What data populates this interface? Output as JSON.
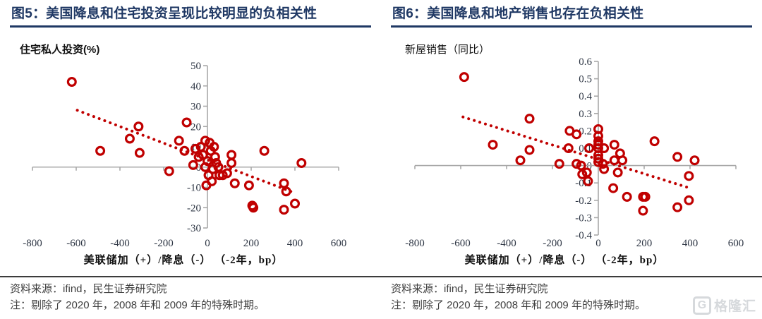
{
  "colors": {
    "marker_red": "#c00000",
    "title_navy": "#1f3864",
    "axis_gray": "#a8a8a8",
    "tick_text": "#2f3745",
    "footer_text": "#3f3f3f",
    "watermark_gray": "#d2d5d9"
  },
  "figures": [
    {
      "title": "图5：美国降息和住宅投资呈现比较明显的负相关性",
      "y_unit": "住宅私人投资(%)",
      "x_title": "美联储加（+）/降息（-） （-2年，bp）",
      "source": "资料来源：ifind，民生证券研究院",
      "note": "注：剔除了 2020 年，2008 年和 2009 年的特殊时期。"
    },
    {
      "title": "图6：美国降息和地产销售也存在负相关性",
      "y_unit": "新屋销售（同比）",
      "x_title": "美联储加（+）/降息（-） （-2年，bp）",
      "source": "资料来源：ifind，民生证券研究院",
      "note": "注：剔除了 2020 年，2008 年和 2009 年的特殊时期。"
    }
  ],
  "watermark": {
    "logo_letter": "G",
    "text": "格隆汇"
  },
  "chart_data": [
    {
      "type": "scatter",
      "title": "图5：美国降息和住宅投资呈现比较明显的负相关性",
      "xlabel": "美联储加（+）/降息（-） （-2年，bp）",
      "ylabel": "住宅私人投资(%)",
      "xlim": [
        -800,
        600
      ],
      "ylim": [
        -30,
        50
      ],
      "xticks": [
        "-800",
        "-600",
        "-400",
        "-200",
        "0",
        "200",
        "400",
        "600"
      ],
      "yticks": [
        "50",
        "40",
        "30",
        "20",
        "10",
        "0",
        "-10",
        "-20",
        "-30"
      ],
      "grid": false,
      "legend": null,
      "marker_color": "#c00000",
      "points": [
        [
          -620,
          42
        ],
        [
          -490,
          8
        ],
        [
          -355,
          14
        ],
        [
          -315,
          20
        ],
        [
          -310,
          7
        ],
        [
          -175,
          -2
        ],
        [
          -130,
          13
        ],
        [
          -105,
          8
        ],
        [
          -95,
          22
        ],
        [
          -65,
          1
        ],
        [
          -55,
          9
        ],
        [
          -40,
          5
        ],
        [
          -30,
          10
        ],
        [
          -20,
          6
        ],
        [
          -10,
          13
        ],
        [
          -10,
          0
        ],
        [
          -5,
          -9
        ],
        [
          0,
          3
        ],
        [
          5,
          -4
        ],
        [
          10,
          12
        ],
        [
          15,
          8
        ],
        [
          20,
          -7
        ],
        [
          25,
          -1
        ],
        [
          30,
          10
        ],
        [
          35,
          5
        ],
        [
          40,
          2
        ],
        [
          50,
          0
        ],
        [
          55,
          -4
        ],
        [
          70,
          -4
        ],
        [
          90,
          -3
        ],
        [
          110,
          6
        ],
        [
          110,
          2
        ],
        [
          125,
          -8
        ],
        [
          190,
          -9
        ],
        [
          205,
          -19
        ],
        [
          210,
          -20
        ],
        [
          260,
          8
        ],
        [
          350,
          -8
        ],
        [
          350,
          -21
        ],
        [
          360,
          -12
        ],
        [
          400,
          -18
        ],
        [
          430,
          2
        ]
      ],
      "trendline": {
        "style": "dotted",
        "color": "#c00000",
        "x": [
          -595,
          405
        ],
        "y": [
          28,
          -13
        ]
      }
    },
    {
      "type": "scatter",
      "title": "图6：美国降息和地产销售也存在负相关性",
      "xlabel": "美联储加（+）/降息（-） （-2年，bp）",
      "ylabel": "新屋销售（同比）",
      "xlim": [
        -800,
        600
      ],
      "ylim": [
        -0.4,
        0.6
      ],
      "xticks": [
        "-800",
        "-600",
        "-400",
        "-200",
        "0",
        "200",
        "400",
        "600"
      ],
      "yticks": [
        "0.6",
        "0.5",
        "0.4",
        "0.3",
        "0.2",
        "0.1",
        "0",
        "-0.1",
        "-0.2",
        "-0.3",
        "-0.4"
      ],
      "grid": false,
      "legend": null,
      "marker_color": "#c00000",
      "points": [
        [
          -585,
          0.51
        ],
        [
          -460,
          0.12
        ],
        [
          -340,
          0.03
        ],
        [
          -300,
          0.27
        ],
        [
          -300,
          0.09
        ],
        [
          -170,
          0.01
        ],
        [
          -130,
          0.1
        ],
        [
          -125,
          0.2
        ],
        [
          -95,
          0.18
        ],
        [
          -95,
          0.01
        ],
        [
          -75,
          0.0
        ],
        [
          -70,
          -0.05
        ],
        [
          -50,
          -0.04
        ],
        [
          -45,
          -0.09
        ],
        [
          -40,
          0.1
        ],
        [
          0,
          0.21
        ],
        [
          0,
          0.17
        ],
        [
          0,
          0.14
        ],
        [
          0,
          0.12
        ],
        [
          0,
          0.1
        ],
        [
          0,
          0.06
        ],
        [
          0,
          0.04
        ],
        [
          0,
          0.02
        ],
        [
          20,
          0.01
        ],
        [
          25,
          -0.02
        ],
        [
          25,
          0.1
        ],
        [
          65,
          -0.13
        ],
        [
          70,
          0.12
        ],
        [
          70,
          0.03
        ],
        [
          85,
          -0.04
        ],
        [
          95,
          0.07
        ],
        [
          105,
          0.03
        ],
        [
          125,
          -0.18
        ],
        [
          195,
          -0.18
        ],
        [
          205,
          -0.18
        ],
        [
          195,
          -0.26
        ],
        [
          245,
          0.14
        ],
        [
          345,
          0.05
        ],
        [
          345,
          -0.24
        ],
        [
          395,
          -0.06
        ],
        [
          395,
          -0.2
        ],
        [
          420,
          0.03
        ]
      ],
      "trendline": {
        "style": "dotted",
        "color": "#c00000",
        "x": [
          -590,
          400
        ],
        "y": [
          0.28,
          -0.13
        ]
      }
    }
  ]
}
